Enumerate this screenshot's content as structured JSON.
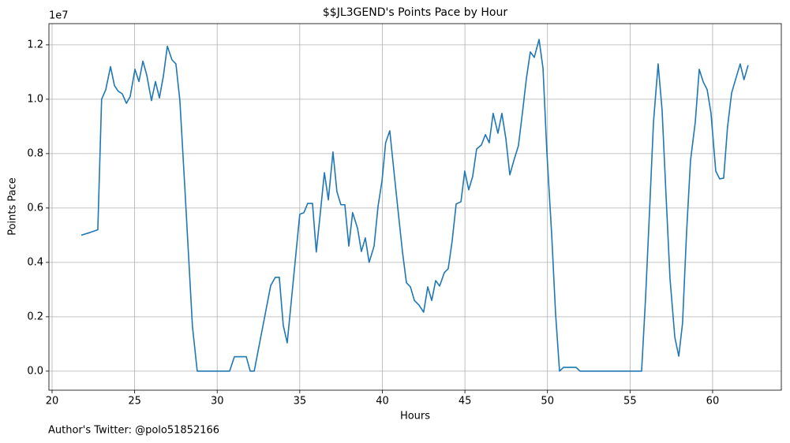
{
  "chart_data": {
    "type": "line",
    "title": "$$JL3GEND's Points Pace by Hour",
    "x_label": "Hours",
    "y_label": "Points Pace",
    "y_offset_label": "1e7",
    "footer": "Author's Twitter: @polo51852166",
    "color": "#1f77b4",
    "grid": true,
    "xlim": [
      19.81,
      64.16
    ],
    "ylim": [
      -0.07,
      1.278
    ],
    "xticks": [
      20,
      25,
      30,
      35,
      40,
      45,
      50,
      55,
      60
    ],
    "yticks": [
      {
        "value": 0,
        "label": "0.0"
      },
      0.2,
      0.4,
      0.6,
      0.8,
      {
        "value": 1,
        "label": "1.0"
      },
      1.2
    ],
    "x": [
      21.77,
      22.3,
      22.77,
      23.0,
      23.25,
      23.54,
      23.78,
      24.0,
      24.25,
      24.5,
      24.73,
      25.02,
      25.26,
      25.5,
      25.73,
      26.02,
      26.26,
      26.5,
      26.74,
      26.98,
      27.26,
      27.5,
      27.74,
      28.03,
      28.27,
      28.5,
      28.79,
      30.75,
      31.04,
      31.76,
      32.0,
      32.24,
      33.24,
      33.52,
      33.76,
      34.0,
      34.24,
      35.0,
      35.25,
      35.48,
      35.77,
      36.0,
      36.25,
      36.49,
      36.73,
      37.01,
      37.25,
      37.49,
      37.73,
      37.97,
      38.2,
      38.5,
      38.73,
      38.97,
      39.2,
      39.5,
      39.74,
      39.98,
      40.2,
      40.45,
      40.74,
      40.98,
      41.22,
      41.46,
      41.7,
      41.94,
      42.22,
      42.5,
      42.75,
      42.99,
      43.23,
      43.47,
      43.75,
      43.99,
      44.23,
      44.47,
      44.76,
      44.99,
      45.23,
      45.47,
      45.71,
      46.0,
      46.24,
      46.47,
      46.71,
      47.0,
      47.24,
      47.48,
      47.72,
      47.96,
      48.24,
      48.48,
      48.72,
      48.96,
      49.2,
      49.49,
      49.73,
      49.96,
      50.25,
      50.49,
      50.73,
      50.97,
      51.73,
      51.97,
      55.7,
      55.94,
      56.18,
      56.42,
      56.7,
      56.94,
      57.18,
      57.42,
      57.71,
      57.95,
      58.18,
      58.42,
      58.66,
      58.95,
      59.19,
      59.43,
      59.67,
      59.9,
      60.19,
      60.43,
      60.67,
      60.9,
      61.15,
      61.43,
      61.67,
      61.9,
      62.15
    ],
    "values": [
      0.5,
      0.51,
      0.52,
      1.0,
      1.035,
      1.12,
      1.05,
      1.03,
      1.02,
      0.985,
      1.01,
      1.11,
      1.065,
      1.14,
      1.09,
      0.995,
      1.065,
      1.005,
      1.085,
      1.195,
      1.145,
      1.13,
      0.995,
      0.685,
      0.42,
      0.165,
      0,
      0,
      0.053,
      0.053,
      0,
      0,
      0.315,
      0.345,
      0.345,
      0.168,
      0.104,
      0.577,
      0.583,
      0.617,
      0.617,
      0.438,
      0.585,
      0.73,
      0.63,
      0.806,
      0.66,
      0.612,
      0.612,
      0.46,
      0.583,
      0.525,
      0.44,
      0.49,
      0.4,
      0.46,
      0.606,
      0.7,
      0.84,
      0.884,
      0.713,
      0.574,
      0.438,
      0.325,
      0.31,
      0.26,
      0.243,
      0.217,
      0.31,
      0.26,
      0.333,
      0.313,
      0.362,
      0.377,
      0.48,
      0.615,
      0.623,
      0.736,
      0.667,
      0.716,
      0.817,
      0.832,
      0.87,
      0.84,
      0.948,
      0.875,
      0.948,
      0.855,
      0.722,
      0.774,
      0.829,
      0.948,
      1.075,
      1.174,
      1.154,
      1.22,
      1.113,
      0.809,
      0.507,
      0.212,
      0,
      0.014,
      0.014,
      0,
      0,
      0.27,
      0.588,
      0.916,
      1.13,
      0.96,
      0.646,
      0.34,
      0.125,
      0.055,
      0.177,
      0.507,
      0.774,
      0.916,
      1.11,
      1.064,
      1.035,
      0.95,
      0.736,
      0.707,
      0.71,
      0.896,
      1.023,
      1.081,
      1.13,
      1.072,
      1.125
    ]
  }
}
